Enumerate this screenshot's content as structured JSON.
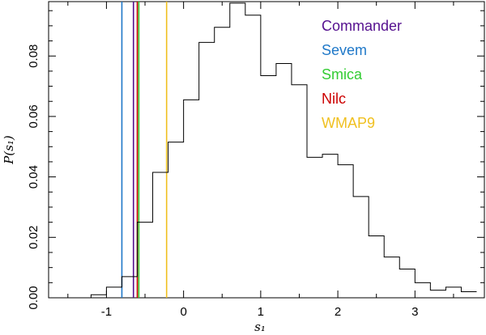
{
  "chart_data": {
    "type": "step-histogram",
    "title": "",
    "xlabel": "s₁",
    "ylabel": "P(s₁)",
    "xlim": [
      -1.75,
      3.9
    ],
    "ylim": [
      0,
      0.098
    ],
    "xticks": [
      -1,
      0,
      1,
      2,
      3
    ],
    "xtick_labels": [
      "-1",
      "0",
      "1",
      "2",
      "3"
    ],
    "yticks": [
      0.0,
      0.02,
      0.04,
      0.06,
      0.08
    ],
    "ytick_labels": [
      "0.00",
      "0.02",
      "0.04",
      "0.06",
      "0.08"
    ],
    "histogram": {
      "bin_edges": [
        -1.5,
        -1.2,
        -1.0,
        -0.8,
        -0.6,
        -0.4,
        -0.2,
        0.0,
        0.2,
        0.4,
        0.6,
        0.8,
        1.0,
        1.2,
        1.4,
        1.6,
        1.8,
        2.0,
        2.2,
        2.4,
        2.6,
        2.8,
        3.0,
        3.2,
        3.4,
        3.6,
        3.8
      ],
      "values": [
        0.0,
        0.001,
        0.0035,
        0.007,
        0.025,
        0.0415,
        0.0515,
        0.0655,
        0.0845,
        0.0895,
        0.0975,
        0.0935,
        0.0735,
        0.0775,
        0.0705,
        0.0465,
        0.0475,
        0.044,
        0.0335,
        0.0205,
        0.0135,
        0.0095,
        0.005,
        0.0025,
        0.0035,
        0.002
      ]
    },
    "vertical_lines": [
      {
        "name": "Sevem",
        "x": -0.8,
        "color": "#1f78c8"
      },
      {
        "name": "Commander",
        "x": -0.65,
        "color": "#55108f"
      },
      {
        "name": "Smica",
        "x": -0.58,
        "color": "#33cc33"
      },
      {
        "name": "Nilc",
        "x": -0.6,
        "color": "#cc0000"
      },
      {
        "name": "WMAP9",
        "x": -0.22,
        "color": "#f0c020"
      }
    ],
    "legend": {
      "placement": "top-right",
      "entries": [
        {
          "label": "Commander",
          "color": "#55108f"
        },
        {
          "label": "Sevem",
          "color": "#1f78c8"
        },
        {
          "label": "Smica",
          "color": "#33cc33"
        },
        {
          "label": "Nilc",
          "color": "#cc0000"
        },
        {
          "label": "WMAP9",
          "color": "#f0c020"
        }
      ]
    }
  }
}
